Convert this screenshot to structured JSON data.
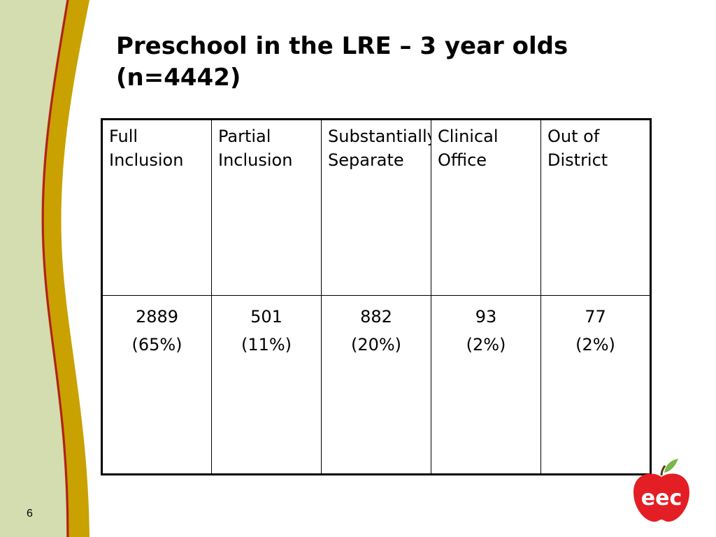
{
  "slide": {
    "title": "Preschool in the LRE – 3 year olds (n=4442)",
    "page_number": "6"
  },
  "table": {
    "columns": [
      "Full Inclusion",
      "Partial Inclusion",
      "Substantially Separate",
      "Clinical Office",
      "Out of District"
    ],
    "counts": [
      "2889",
      "501",
      "882",
      "93",
      "77"
    ],
    "percents": [
      "(65%)",
      "(11%)",
      "(20%)",
      "(2%)",
      "(2%)"
    ]
  },
  "logo": {
    "text": "eec",
    "icon": "apple-logo-icon",
    "color": "#e31e24",
    "leaf_color": "#7ab648"
  },
  "theme": {
    "band_green": "#d4ddb0",
    "band_gold": "#c9a100",
    "band_red": "#b01f24"
  }
}
